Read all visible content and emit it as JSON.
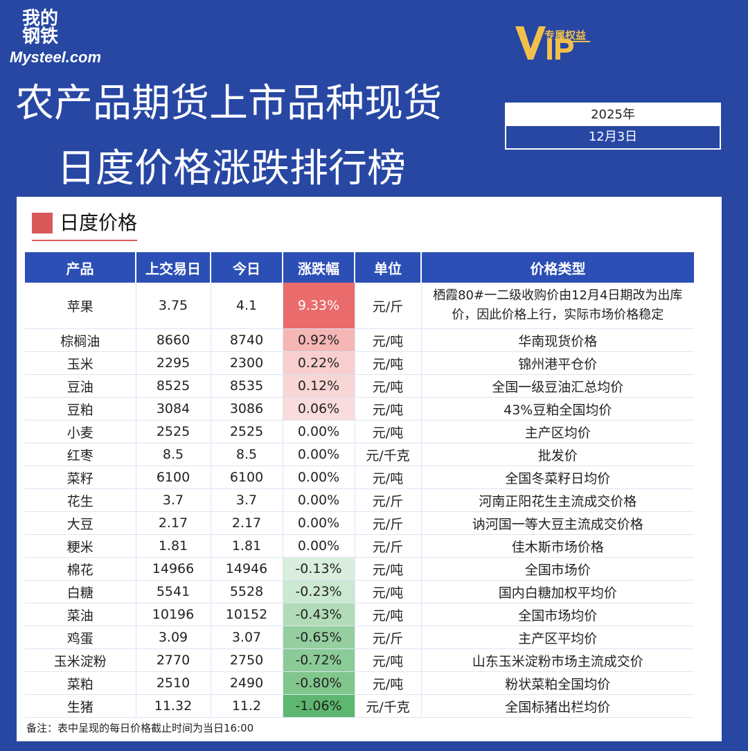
{
  "logo": {
    "line1": "我的",
    "line2": "钢铁",
    "brand": "Mysteel.com"
  },
  "vip": {
    "mark": "VIP",
    "label": "专属权益"
  },
  "title": {
    "line1": "农产品期货上市品种现货",
    "line2": "日度价格涨跌排行榜"
  },
  "date": {
    "year": "2025年",
    "day": "12月3日"
  },
  "section": {
    "label": "日度价格"
  },
  "table": {
    "headers": [
      "产品",
      "上交易日",
      "今日",
      "涨跌幅",
      "单位",
      "价格类型"
    ],
    "rows": [
      {
        "product": "苹果",
        "prev": "3.75",
        "today": "4.1",
        "change": "9.33%",
        "unit": "元/斤",
        "type": "栖霞80#一二级收购价由12月4日期改为出库价，因此价格上行，实际市场价格稳定"
      },
      {
        "product": "棕榈油",
        "prev": "8660",
        "today": "8740",
        "change": "0.92%",
        "unit": "元/吨",
        "type": "华南现货价格"
      },
      {
        "product": "玉米",
        "prev": "2295",
        "today": "2300",
        "change": "0.22%",
        "unit": "元/吨",
        "type": "锦州港平仓价"
      },
      {
        "product": "豆油",
        "prev": "8525",
        "today": "8535",
        "change": "0.12%",
        "unit": "元/吨",
        "type": "全国一级豆油汇总均价"
      },
      {
        "product": "豆粕",
        "prev": "3084",
        "today": "3086",
        "change": "0.06%",
        "unit": "元/吨",
        "type": "43%豆粕全国均价"
      },
      {
        "product": "小麦",
        "prev": "2525",
        "today": "2525",
        "change": "0.00%",
        "unit": "元/吨",
        "type": "主产区均价"
      },
      {
        "product": "红枣",
        "prev": "8.5",
        "today": "8.5",
        "change": "0.00%",
        "unit": "元/千克",
        "type": "批发价"
      },
      {
        "product": "菜籽",
        "prev": "6100",
        "today": "6100",
        "change": "0.00%",
        "unit": "元/吨",
        "type": "全国冬菜籽日均价"
      },
      {
        "product": "花生",
        "prev": "3.7",
        "today": "3.7",
        "change": "0.00%",
        "unit": "元/斤",
        "type": "河南正阳花生主流成交价格"
      },
      {
        "product": "大豆",
        "prev": "2.17",
        "today": "2.17",
        "change": "0.00%",
        "unit": "元/斤",
        "type": "讷河国一等大豆主流成交价格"
      },
      {
        "product": "粳米",
        "prev": "1.81",
        "today": "1.81",
        "change": "0.00%",
        "unit": "元/斤",
        "type": "佳木斯市场价格"
      },
      {
        "product": "棉花",
        "prev": "14966",
        "today": "14946",
        "change": "-0.13%",
        "unit": "元/吨",
        "type": "全国市场价"
      },
      {
        "product": "白糖",
        "prev": "5541",
        "today": "5528",
        "change": "-0.23%",
        "unit": "元/吨",
        "type": "国内白糖加权平均价"
      },
      {
        "product": "菜油",
        "prev": "10196",
        "today": "10152",
        "change": "-0.43%",
        "unit": "元/吨",
        "type": "全国市场均价"
      },
      {
        "product": "鸡蛋",
        "prev": "3.09",
        "today": "3.07",
        "change": "-0.65%",
        "unit": "元/斤",
        "type": "主产区平均价"
      },
      {
        "product": "玉米淀粉",
        "prev": "2770",
        "today": "2750",
        "change": "-0.72%",
        "unit": "元/吨",
        "type": "山东玉米淀粉市场主流成交价"
      },
      {
        "product": "菜粕",
        "prev": "2510",
        "today": "2490",
        "change": "-0.80%",
        "unit": "元/吨",
        "type": "粉状菜粕全国均价"
      },
      {
        "product": "生猪",
        "prev": "11.32",
        "today": "11.2",
        "change": "-1.06%",
        "unit": "元/千克",
        "type": "全国标猪出栏均价"
      }
    ]
  },
  "note": "备注：表中呈现的每日价格截止时间为当日16:00",
  "colors": {
    "background": "#2747a3",
    "header": "#2c4fb5",
    "rise": "#ea6b6b",
    "fall": "#4daf5f"
  }
}
